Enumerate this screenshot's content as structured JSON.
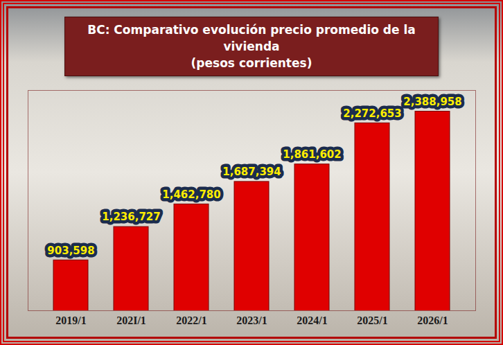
{
  "chart_data": {
    "type": "bar",
    "title": "BC: Comparativo evolución precio promedio de la vivienda",
    "subtitle": "(pesos corrientes)",
    "categories": [
      "2019/1",
      "202I/1",
      "2022/1",
      "2023/1",
      "2024/1",
      "2025/1",
      "2026/1"
    ],
    "values": [
      903598,
      1236727,
      1462780,
      1687394,
      1861602,
      2272653,
      2388958
    ],
    "value_labels": [
      "903,598",
      "1,236,727",
      "1,462,780",
      "1,687,394",
      "1,861,602",
      "2,272,653",
      "2,388,958"
    ],
    "color": "#e00000",
    "ylim": [
      400000,
      2600000
    ],
    "data_labels": true,
    "tick_labels": "x",
    "grid": false
  }
}
